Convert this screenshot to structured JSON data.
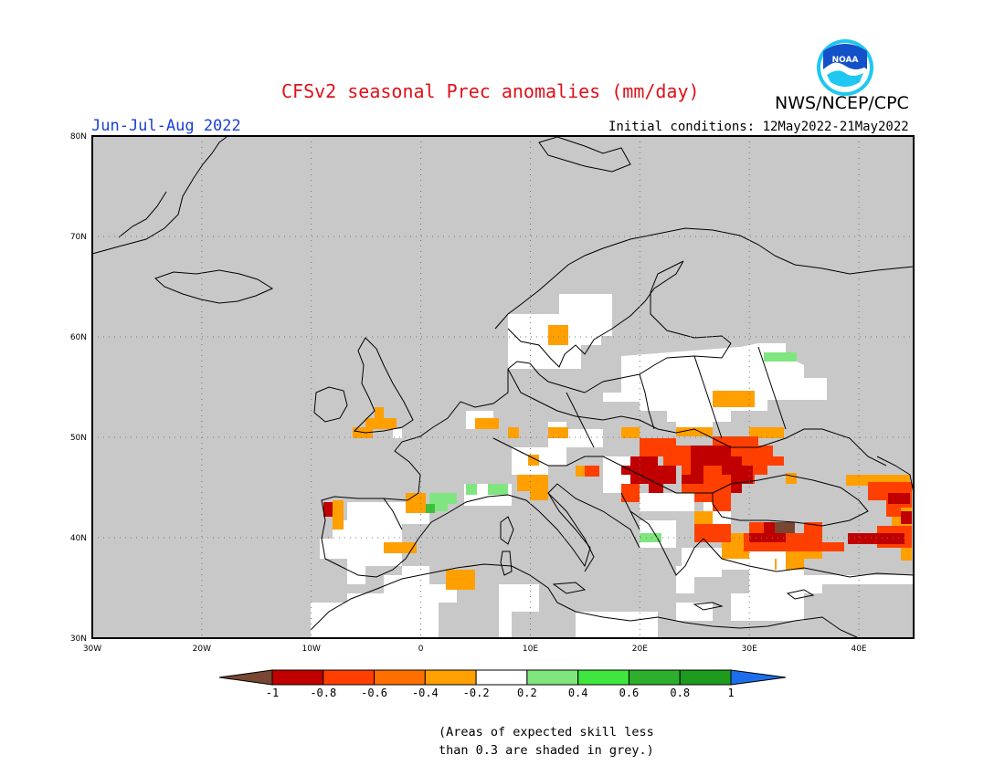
{
  "header": {
    "title": "CFSv2 seasonal Prec anomalies (mm/day)",
    "agency": "NWS/NCEP/CPC",
    "season": "Jun-Jul-Aug 2022",
    "initial_conditions": "Initial conditions: 12May2022-21May2022",
    "logo_text": "NOAA"
  },
  "map": {
    "region": "Europe",
    "lon_labels": [
      "30W",
      "20W",
      "10W",
      "0",
      "10E",
      "20E",
      "30E",
      "40E"
    ],
    "lat_labels": [
      "80N",
      "70N",
      "60N",
      "50N",
      "40N",
      "30N"
    ],
    "lon_range": [
      -30,
      45
    ],
    "lat_range": [
      30,
      80
    ],
    "grid": true,
    "masked_color": "#c8c8c8",
    "land_outline_color": "#000000"
  },
  "anomaly_regions": [
    {
      "area": "Romania / Moldova / Ukraine",
      "category": "-0.8 to -0.6",
      "color": "#c00000"
    },
    {
      "area": "Hungary / Serbia",
      "category": "-0.8 to -0.6",
      "color": "#c00000"
    },
    {
      "area": "Ukraine (west)",
      "category": "-0.6 to -0.4",
      "color": "#ff3f00"
    },
    {
      "area": "Turkey (central)",
      "category": "-1 and below",
      "color": "#784632"
    },
    {
      "area": "Turkey / Caucasus",
      "category": "-0.6 to -0.4",
      "color": "#ff3f00"
    },
    {
      "area": "Portugal (north)",
      "category": "-0.8 to -0.6",
      "color": "#c00000"
    },
    {
      "area": "Great Britain / Iberia / Alps",
      "category": "-0.4 to -0.2",
      "color": "#ff9f00"
    },
    {
      "area": "Pyrenees / Gulf of Lion",
      "category": "0.2 to 0.4",
      "color": "#7fe67f"
    },
    {
      "area": "Russia (northwest)",
      "category": "0.2 to 0.4",
      "color": "#7fe67f"
    }
  ],
  "legend": {
    "ticks": [
      "-1",
      "-0.8",
      "-0.6",
      "-0.4",
      "-0.2",
      "0.2",
      "0.4",
      "0.6",
      "0.8",
      "1"
    ],
    "colors": [
      "#784632",
      "#c00000",
      "#ff3f00",
      "#ff6f00",
      "#ff9f00",
      "#ffffff",
      "#7fe67f",
      "#3ee63e",
      "#2daf2d",
      "#1e9b1e",
      "#1e6eeb"
    ]
  },
  "note": {
    "line1": "(Areas of expected skill less",
    "line2": "than 0.3 are shaded in grey.)"
  }
}
